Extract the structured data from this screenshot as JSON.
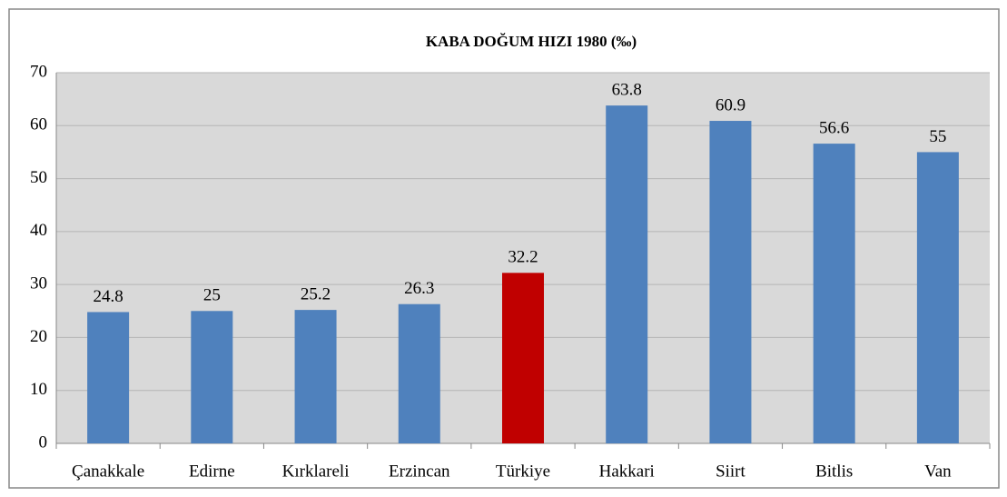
{
  "chart_data": {
    "type": "bar",
    "title": "KABA DOĞUM HIZI 1980 (‰)",
    "categories": [
      "Çanakkale",
      "Edirne",
      "Kırklareli",
      "Erzincan",
      "Türkiye",
      "Hakkari",
      "Siirt",
      "Bitlis",
      "Van"
    ],
    "values": [
      24.8,
      25,
      25.2,
      26.3,
      32.2,
      63.8,
      60.9,
      56.6,
      55
    ],
    "colors": [
      "#4f81bd",
      "#4f81bd",
      "#4f81bd",
      "#4f81bd",
      "#c00000",
      "#4f81bd",
      "#4f81bd",
      "#4f81bd",
      "#4f81bd"
    ],
    "ylim": [
      0,
      70
    ],
    "yticks": [
      0,
      10,
      20,
      30,
      40,
      50,
      60,
      70
    ],
    "grid": true
  }
}
